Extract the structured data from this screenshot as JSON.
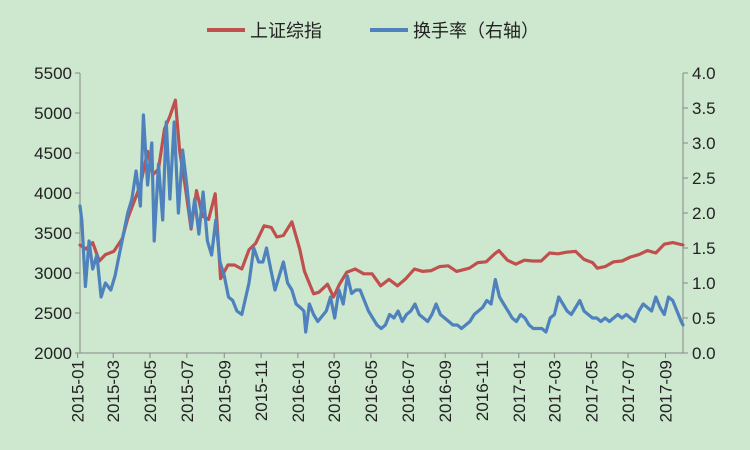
{
  "colors": {
    "background": "#cde8cf",
    "shanghai": "#c0504d",
    "turnover": "#4f81bd",
    "axis": "#888888"
  },
  "chart_data": {
    "type": "line",
    "title": "",
    "legend_position": "top-center",
    "grid": false,
    "x_unit": "date",
    "x_tick_labels": [
      "2015-01",
      "2015-03",
      "2015-05",
      "2015-07",
      "2015-09",
      "2015-11",
      "2016-01",
      "2016-03",
      "2016-05",
      "2016-07",
      "2016-09",
      "2016-11",
      "2017-01",
      "2017-03",
      "2017-05",
      "2017-07",
      "2017-09"
    ],
    "x_range": [
      "2015-01-05",
      "2017-09-30"
    ],
    "y_left": {
      "ylim": [
        2000,
        5500
      ],
      "ticks": [
        "2000",
        "2500",
        "3000",
        "3500",
        "4000",
        "4500",
        "5000",
        "5500"
      ]
    },
    "y_right": {
      "ylim": [
        0,
        4.0
      ],
      "ticks": [
        "0.0",
        "0.5",
        "1.0",
        "1.5",
        "2.0",
        "2.5",
        "3.0",
        "3.5",
        "4.0"
      ]
    },
    "series": [
      {
        "name": "上证综指",
        "axis": "left",
        "color": "#c0504d",
        "points": [
          [
            "2015-01-05",
            3350
          ],
          [
            "2015-01-15",
            3300
          ],
          [
            "2015-01-26",
            3380
          ],
          [
            "2015-02-06",
            3150
          ],
          [
            "2015-02-16",
            3230
          ],
          [
            "2015-03-02",
            3270
          ],
          [
            "2015-03-16",
            3430
          ],
          [
            "2015-03-25",
            3680
          ],
          [
            "2015-04-03",
            3860
          ],
          [
            "2015-04-15",
            4100
          ],
          [
            "2015-04-27",
            4520
          ],
          [
            "2015-05-06",
            4230
          ],
          [
            "2015-05-15",
            4300
          ],
          [
            "2015-05-25",
            4800
          ],
          [
            "2015-06-03",
            4960
          ],
          [
            "2015-06-12",
            5160
          ],
          [
            "2015-06-19",
            4530
          ],
          [
            "2015-06-29",
            4050
          ],
          [
            "2015-07-08",
            3550
          ],
          [
            "2015-07-17",
            4030
          ],
          [
            "2015-07-27",
            3710
          ],
          [
            "2015-08-06",
            3670
          ],
          [
            "2015-08-17",
            3990
          ],
          [
            "2015-08-26",
            2930
          ],
          [
            "2015-09-07",
            3100
          ],
          [
            "2015-09-18",
            3100
          ],
          [
            "2015-09-30",
            3050
          ],
          [
            "2015-10-12",
            3290
          ],
          [
            "2015-10-23",
            3370
          ],
          [
            "2015-11-06",
            3590
          ],
          [
            "2015-11-18",
            3570
          ],
          [
            "2015-11-27",
            3450
          ],
          [
            "2015-12-08",
            3470
          ],
          [
            "2015-12-22",
            3640
          ],
          [
            "2016-01-04",
            3300
          ],
          [
            "2016-01-12",
            3020
          ],
          [
            "2016-01-27",
            2740
          ],
          [
            "2016-02-05",
            2760
          ],
          [
            "2016-02-19",
            2860
          ],
          [
            "2016-02-29",
            2700
          ],
          [
            "2016-03-10",
            2860
          ],
          [
            "2016-03-22",
            3010
          ],
          [
            "2016-04-05",
            3050
          ],
          [
            "2016-04-19",
            2990
          ],
          [
            "2016-05-03",
            2990
          ],
          [
            "2016-05-17",
            2840
          ],
          [
            "2016-05-31",
            2920
          ],
          [
            "2016-06-14",
            2840
          ],
          [
            "2016-06-28",
            2930
          ],
          [
            "2016-07-12",
            3050
          ],
          [
            "2016-07-26",
            3020
          ],
          [
            "2016-08-09",
            3030
          ],
          [
            "2016-08-23",
            3080
          ],
          [
            "2016-09-06",
            3090
          ],
          [
            "2016-09-20",
            3020
          ],
          [
            "2016-10-11",
            3060
          ],
          [
            "2016-10-25",
            3130
          ],
          [
            "2016-11-08",
            3140
          ],
          [
            "2016-11-22",
            3240
          ],
          [
            "2016-11-29",
            3280
          ],
          [
            "2016-12-13",
            3160
          ],
          [
            "2016-12-27",
            3110
          ],
          [
            "2017-01-10",
            3160
          ],
          [
            "2017-01-24",
            3150
          ],
          [
            "2017-02-07",
            3150
          ],
          [
            "2017-02-21",
            3250
          ],
          [
            "2017-03-07",
            3240
          ],
          [
            "2017-03-21",
            3260
          ],
          [
            "2017-04-05",
            3270
          ],
          [
            "2017-04-19",
            3170
          ],
          [
            "2017-05-03",
            3130
          ],
          [
            "2017-05-11",
            3060
          ],
          [
            "2017-05-24",
            3080
          ],
          [
            "2017-06-07",
            3140
          ],
          [
            "2017-06-21",
            3150
          ],
          [
            "2017-07-05",
            3200
          ],
          [
            "2017-07-19",
            3230
          ],
          [
            "2017-08-02",
            3280
          ],
          [
            "2017-08-16",
            3250
          ],
          [
            "2017-08-30",
            3360
          ],
          [
            "2017-09-13",
            3380
          ],
          [
            "2017-09-30",
            3350
          ]
        ]
      },
      {
        "name": "换手率（右轴）",
        "axis": "right",
        "color": "#4f81bd",
        "points": [
          [
            "2015-01-05",
            2.1
          ],
          [
            "2015-01-08",
            1.9
          ],
          [
            "2015-01-14",
            0.95
          ],
          [
            "2015-01-20",
            1.6
          ],
          [
            "2015-01-26",
            1.2
          ],
          [
            "2015-02-02",
            1.4
          ],
          [
            "2015-02-09",
            0.8
          ],
          [
            "2015-02-16",
            1.0
          ],
          [
            "2015-02-25",
            0.9
          ],
          [
            "2015-03-04",
            1.1
          ],
          [
            "2015-03-11",
            1.4
          ],
          [
            "2015-03-18",
            1.7
          ],
          [
            "2015-03-25",
            2.0
          ],
          [
            "2015-04-01",
            2.2
          ],
          [
            "2015-04-08",
            2.6
          ],
          [
            "2015-04-15",
            2.1
          ],
          [
            "2015-04-20",
            3.4
          ],
          [
            "2015-04-27",
            2.4
          ],
          [
            "2015-05-04",
            3.0
          ],
          [
            "2015-05-08",
            1.6
          ],
          [
            "2015-05-15",
            2.7
          ],
          [
            "2015-05-22",
            1.9
          ],
          [
            "2015-05-28",
            3.3
          ],
          [
            "2015-06-03",
            2.2
          ],
          [
            "2015-06-10",
            3.3
          ],
          [
            "2015-06-17",
            2.0
          ],
          [
            "2015-06-24",
            2.9
          ],
          [
            "2015-07-01",
            2.4
          ],
          [
            "2015-07-08",
            1.8
          ],
          [
            "2015-07-14",
            2.2
          ],
          [
            "2015-07-21",
            1.7
          ],
          [
            "2015-07-28",
            2.3
          ],
          [
            "2015-08-04",
            1.6
          ],
          [
            "2015-08-11",
            1.4
          ],
          [
            "2015-08-18",
            1.9
          ],
          [
            "2015-08-25",
            1.3
          ],
          [
            "2015-09-01",
            1.1
          ],
          [
            "2015-09-08",
            0.8
          ],
          [
            "2015-09-15",
            0.75
          ],
          [
            "2015-09-22",
            0.6
          ],
          [
            "2015-09-30",
            0.55
          ],
          [
            "2015-10-12",
            1.0
          ],
          [
            "2015-10-20",
            1.5
          ],
          [
            "2015-10-28",
            1.3
          ],
          [
            "2015-11-04",
            1.3
          ],
          [
            "2015-11-10",
            1.5
          ],
          [
            "2015-11-17",
            1.2
          ],
          [
            "2015-11-24",
            0.9
          ],
          [
            "2015-12-01",
            1.1
          ],
          [
            "2015-12-08",
            1.3
          ],
          [
            "2015-12-15",
            1.0
          ],
          [
            "2015-12-22",
            0.9
          ],
          [
            "2015-12-29",
            0.7
          ],
          [
            "2016-01-05",
            0.65
          ],
          [
            "2016-01-11",
            0.6
          ],
          [
            "2016-01-14",
            0.3
          ],
          [
            "2016-01-20",
            0.7
          ],
          [
            "2016-01-27",
            0.55
          ],
          [
            "2016-02-03",
            0.45
          ],
          [
            "2016-02-17",
            0.6
          ],
          [
            "2016-02-24",
            0.8
          ],
          [
            "2016-03-02",
            0.5
          ],
          [
            "2016-03-09",
            0.9
          ],
          [
            "2016-03-16",
            0.7
          ],
          [
            "2016-03-23",
            1.1
          ],
          [
            "2016-03-30",
            0.85
          ],
          [
            "2016-04-06",
            0.9
          ],
          [
            "2016-04-13",
            0.9
          ],
          [
            "2016-04-20",
            0.75
          ],
          [
            "2016-04-27",
            0.6
          ],
          [
            "2016-05-04",
            0.5
          ],
          [
            "2016-05-11",
            0.4
          ],
          [
            "2016-05-18",
            0.35
          ],
          [
            "2016-05-25",
            0.4
          ],
          [
            "2016-06-01",
            0.55
          ],
          [
            "2016-06-08",
            0.5
          ],
          [
            "2016-06-15",
            0.6
          ],
          [
            "2016-06-22",
            0.45
          ],
          [
            "2016-06-29",
            0.55
          ],
          [
            "2016-07-06",
            0.6
          ],
          [
            "2016-07-13",
            0.7
          ],
          [
            "2016-07-20",
            0.55
          ],
          [
            "2016-07-27",
            0.5
          ],
          [
            "2016-08-03",
            0.45
          ],
          [
            "2016-08-10",
            0.55
          ],
          [
            "2016-08-17",
            0.7
          ],
          [
            "2016-08-24",
            0.55
          ],
          [
            "2016-08-31",
            0.5
          ],
          [
            "2016-09-07",
            0.45
          ],
          [
            "2016-09-14",
            0.4
          ],
          [
            "2016-09-21",
            0.4
          ],
          [
            "2016-09-28",
            0.35
          ],
          [
            "2016-10-12",
            0.45
          ],
          [
            "2016-10-19",
            0.55
          ],
          [
            "2016-10-26",
            0.6
          ],
          [
            "2016-11-02",
            0.65
          ],
          [
            "2016-11-09",
            0.75
          ],
          [
            "2016-11-16",
            0.7
          ],
          [
            "2016-11-23",
            1.05
          ],
          [
            "2016-11-30",
            0.8
          ],
          [
            "2016-12-07",
            0.7
          ],
          [
            "2016-12-14",
            0.6
          ],
          [
            "2016-12-21",
            0.5
          ],
          [
            "2016-12-28",
            0.45
          ],
          [
            "2017-01-04",
            0.55
          ],
          [
            "2017-01-11",
            0.5
          ],
          [
            "2017-01-18",
            0.4
          ],
          [
            "2017-01-25",
            0.35
          ],
          [
            "2017-02-08",
            0.35
          ],
          [
            "2017-02-15",
            0.3
          ],
          [
            "2017-02-22",
            0.5
          ],
          [
            "2017-03-01",
            0.55
          ],
          [
            "2017-03-08",
            0.8
          ],
          [
            "2017-03-15",
            0.7
          ],
          [
            "2017-03-22",
            0.6
          ],
          [
            "2017-03-29",
            0.55
          ],
          [
            "2017-04-05",
            0.65
          ],
          [
            "2017-04-12",
            0.75
          ],
          [
            "2017-04-19",
            0.6
          ],
          [
            "2017-04-26",
            0.55
          ],
          [
            "2017-05-03",
            0.5
          ],
          [
            "2017-05-10",
            0.5
          ],
          [
            "2017-05-17",
            0.45
          ],
          [
            "2017-05-24",
            0.5
          ],
          [
            "2017-05-31",
            0.45
          ],
          [
            "2017-06-07",
            0.5
          ],
          [
            "2017-06-14",
            0.55
          ],
          [
            "2017-06-21",
            0.5
          ],
          [
            "2017-06-28",
            0.55
          ],
          [
            "2017-07-05",
            0.5
          ],
          [
            "2017-07-12",
            0.45
          ],
          [
            "2017-07-19",
            0.6
          ],
          [
            "2017-07-26",
            0.7
          ],
          [
            "2017-08-02",
            0.65
          ],
          [
            "2017-08-09",
            0.6
          ],
          [
            "2017-08-16",
            0.8
          ],
          [
            "2017-08-23",
            0.65
          ],
          [
            "2017-08-30",
            0.55
          ],
          [
            "2017-09-06",
            0.8
          ],
          [
            "2017-09-13",
            0.75
          ],
          [
            "2017-09-20",
            0.6
          ],
          [
            "2017-09-27",
            0.45
          ],
          [
            "2017-09-30",
            0.4
          ]
        ]
      }
    ]
  }
}
